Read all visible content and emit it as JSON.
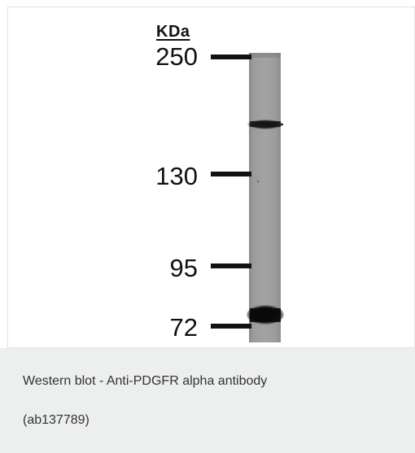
{
  "figure": {
    "unit_label": "KDa",
    "markers": [
      {
        "label": "250",
        "kda": 250
      },
      {
        "label": "130",
        "kda": 130
      },
      {
        "label": "95",
        "kda": 95
      },
      {
        "label": "72",
        "kda": 72
      }
    ],
    "bands": [
      {
        "description": "upper band",
        "intensity": "medium"
      },
      {
        "description": "lower band",
        "intensity": "strong"
      }
    ]
  },
  "caption": {
    "title": "Western blot - Anti-PDGFR alpha antibody",
    "product_code": "(ab137789)"
  },
  "colors": {
    "caption_background": "#edeeee",
    "caption_text": "#333333",
    "lane_gray": "#9a9a9a",
    "marker_black": "#111111"
  }
}
